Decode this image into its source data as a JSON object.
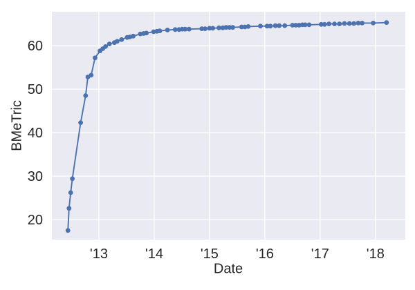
{
  "chart_data": {
    "type": "line",
    "title": "",
    "xlabel": "Date",
    "ylabel": "BMeTric",
    "xlim": [
      2012.15,
      2018.54
    ],
    "ylim": [
      15.4,
      67.8
    ],
    "xticks": {
      "values": [
        2013,
        2014,
        2015,
        2016,
        2017,
        2018
      ],
      "labels": [
        "'13",
        "'14",
        "'15",
        "'16",
        "'17",
        "'18"
      ]
    },
    "yticks": {
      "values": [
        20,
        30,
        40,
        50,
        60
      ],
      "labels": [
        "20",
        "30",
        "40",
        "50",
        "60"
      ]
    },
    "grid": true,
    "legend_position": "none",
    "style": {
      "figure_bg": "#FFFFFF",
      "plot_bg": "#EAEAF2",
      "grid_color": "#FFFFFF",
      "line_color": "#4C72B0",
      "marker_color": "#4C72B0",
      "text_color": "#262626"
    },
    "series": [
      {
        "name": "BMeTric",
        "marker": "circle",
        "points": [
          [
            2012.44,
            17.5
          ],
          [
            2012.46,
            22.6
          ],
          [
            2012.49,
            26.2
          ],
          [
            2012.52,
            29.4
          ],
          [
            2012.67,
            42.3
          ],
          [
            2012.76,
            48.5
          ],
          [
            2012.8,
            52.8
          ],
          [
            2012.86,
            53.2
          ],
          [
            2012.93,
            57.2
          ],
          [
            2013.02,
            58.8
          ],
          [
            2013.07,
            59.3
          ],
          [
            2013.12,
            59.8
          ],
          [
            2013.19,
            60.4
          ],
          [
            2013.28,
            60.7
          ],
          [
            2013.33,
            61.0
          ],
          [
            2013.41,
            61.4
          ],
          [
            2013.51,
            61.9
          ],
          [
            2013.56,
            62.0
          ],
          [
            2013.62,
            62.2
          ],
          [
            2013.75,
            62.7
          ],
          [
            2013.81,
            62.8
          ],
          [
            2013.86,
            62.9
          ],
          [
            2013.99,
            63.2
          ],
          [
            2014.05,
            63.3
          ],
          [
            2014.1,
            63.4
          ],
          [
            2014.24,
            63.6
          ],
          [
            2014.38,
            63.7
          ],
          [
            2014.45,
            63.7
          ],
          [
            2014.51,
            63.8
          ],
          [
            2014.56,
            63.8
          ],
          [
            2014.63,
            63.8
          ],
          [
            2014.86,
            63.9
          ],
          [
            2014.92,
            63.9
          ],
          [
            2015.0,
            64.0
          ],
          [
            2015.06,
            64.0
          ],
          [
            2015.17,
            64.1
          ],
          [
            2015.24,
            64.1
          ],
          [
            2015.3,
            64.2
          ],
          [
            2015.36,
            64.2
          ],
          [
            2015.42,
            64.2
          ],
          [
            2015.58,
            64.3
          ],
          [
            2015.64,
            64.3
          ],
          [
            2015.7,
            64.4
          ],
          [
            2015.92,
            64.5
          ],
          [
            2016.04,
            64.5
          ],
          [
            2016.1,
            64.5
          ],
          [
            2016.19,
            64.6
          ],
          [
            2016.26,
            64.6
          ],
          [
            2016.36,
            64.6
          ],
          [
            2016.5,
            64.7
          ],
          [
            2016.56,
            64.7
          ],
          [
            2016.62,
            64.7
          ],
          [
            2016.68,
            64.8
          ],
          [
            2016.73,
            64.8
          ],
          [
            2016.8,
            64.8
          ],
          [
            2017.02,
            64.9
          ],
          [
            2017.08,
            64.9
          ],
          [
            2017.16,
            65.0
          ],
          [
            2017.26,
            65.0
          ],
          [
            2017.35,
            65.0
          ],
          [
            2017.44,
            65.1
          ],
          [
            2017.53,
            65.1
          ],
          [
            2017.61,
            65.1
          ],
          [
            2017.69,
            65.2
          ],
          [
            2017.76,
            65.2
          ],
          [
            2017.96,
            65.2
          ],
          [
            2018.2,
            65.3
          ]
        ]
      }
    ]
  }
}
